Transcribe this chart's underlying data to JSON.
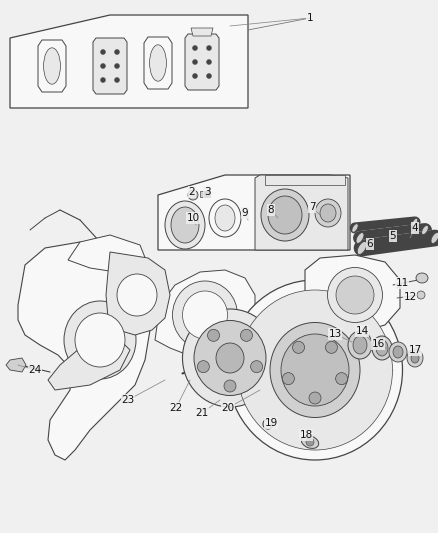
{
  "background_color": "#f0f0f0",
  "line_color": "#444444",
  "label_color": "#111111",
  "fig_width": 4.38,
  "fig_height": 5.33,
  "dpi": 100,
  "labels": [
    [
      "1",
      310,
      18
    ],
    [
      "2",
      192,
      192
    ],
    [
      "3",
      207,
      192
    ],
    [
      "4",
      415,
      230
    ],
    [
      "5",
      393,
      238
    ],
    [
      "6",
      370,
      246
    ],
    [
      "7",
      312,
      207
    ],
    [
      "8",
      271,
      210
    ],
    [
      "9",
      245,
      213
    ],
    [
      "10",
      193,
      218
    ],
    [
      "11",
      402,
      285
    ],
    [
      "12",
      410,
      298
    ],
    [
      "13",
      335,
      336
    ],
    [
      "14",
      360,
      333
    ],
    [
      "16",
      376,
      346
    ],
    [
      "17",
      415,
      352
    ],
    [
      "18",
      306,
      437
    ],
    [
      "19",
      271,
      425
    ],
    [
      "20",
      228,
      410
    ],
    [
      "21",
      202,
      415
    ],
    [
      "22",
      176,
      410
    ],
    [
      "23",
      128,
      402
    ],
    [
      "24",
      35,
      372
    ]
  ]
}
